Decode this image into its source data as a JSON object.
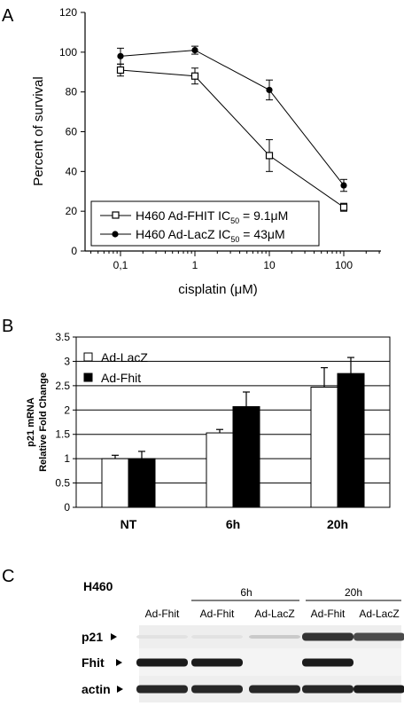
{
  "panels": {
    "a": {
      "letter": "A"
    },
    "b": {
      "letter": "B"
    },
    "c": {
      "letter": "C"
    }
  },
  "chart_data": [
    {
      "type": "line",
      "xlabel": "cisplatin (μM)",
      "ylabel": "Percent of survival",
      "x_scale": "log",
      "x": [
        0.1,
        1,
        10,
        100
      ],
      "x_tick_labels": [
        "0,1",
        "1",
        "10",
        "100"
      ],
      "ylim": [
        0,
        120
      ],
      "y_ticks": [
        0,
        20,
        40,
        60,
        80,
        100,
        120
      ],
      "grid": false,
      "legend": "lower-center",
      "series": [
        {
          "name": "H460 Ad-FHIT IC50 = 9.1μM",
          "label_prefix": "H460 Ad-FHIT IC",
          "label_sub": "50",
          "label_suffix": " = 9.1μM",
          "marker": "open-square",
          "values": [
            91,
            88,
            48,
            22
          ],
          "errors": [
            3,
            4,
            8,
            2
          ]
        },
        {
          "name": "H460 Ad-LacZ IC50 = 43μM",
          "label_prefix": "H460 Ad-LacZ IC",
          "label_sub": "50",
          "label_suffix": " = 43μM",
          "marker": "filled-circle",
          "values": [
            98,
            101,
            81,
            33
          ],
          "errors": [
            4,
            2,
            5,
            3
          ]
        }
      ]
    },
    {
      "type": "bar",
      "ylabel_line1": "p21 mRNA",
      "ylabel_line2": "Relative Fold Change",
      "categories": [
        "NT",
        "6h",
        "20h"
      ],
      "ylim": [
        0,
        3.5
      ],
      "y_ticks": [
        0,
        0.5,
        1,
        1.5,
        2,
        2.5,
        3,
        3.5
      ],
      "y_tick_labels": [
        "0",
        "0.5",
        "1",
        "1.5",
        "2",
        "2.5",
        "3",
        "3.5"
      ],
      "grid": true,
      "legend": "top-left",
      "series": [
        {
          "name": "Ad-LacZ",
          "color": "#ffffff",
          "values": [
            1.0,
            1.53,
            2.47
          ],
          "errors": [
            0.07,
            0.07,
            0.4
          ]
        },
        {
          "name": "Ad-Fhit",
          "color": "#000000",
          "values": [
            1.0,
            2.07,
            2.75
          ],
          "errors": [
            0.15,
            0.3,
            0.33
          ]
        }
      ]
    }
  ],
  "blot": {
    "cell_line": "H460",
    "time_groups": [
      "6h",
      "20h"
    ],
    "lanes": [
      "Ad-Fhit",
      "Ad-Fhit",
      "Ad-LacZ",
      "Ad-Fhit",
      "Ad-LacZ"
    ],
    "rows": [
      {
        "label": "p21",
        "intensities": [
          0.12,
          0.12,
          0.22,
          0.85,
          0.75
        ]
      },
      {
        "label": "Fhit",
        "intensities": [
          0.95,
          0.95,
          0.0,
          0.95,
          0.0
        ]
      },
      {
        "label": "actin",
        "intensities": [
          0.9,
          0.9,
          0.9,
          0.9,
          0.95
        ]
      }
    ]
  }
}
